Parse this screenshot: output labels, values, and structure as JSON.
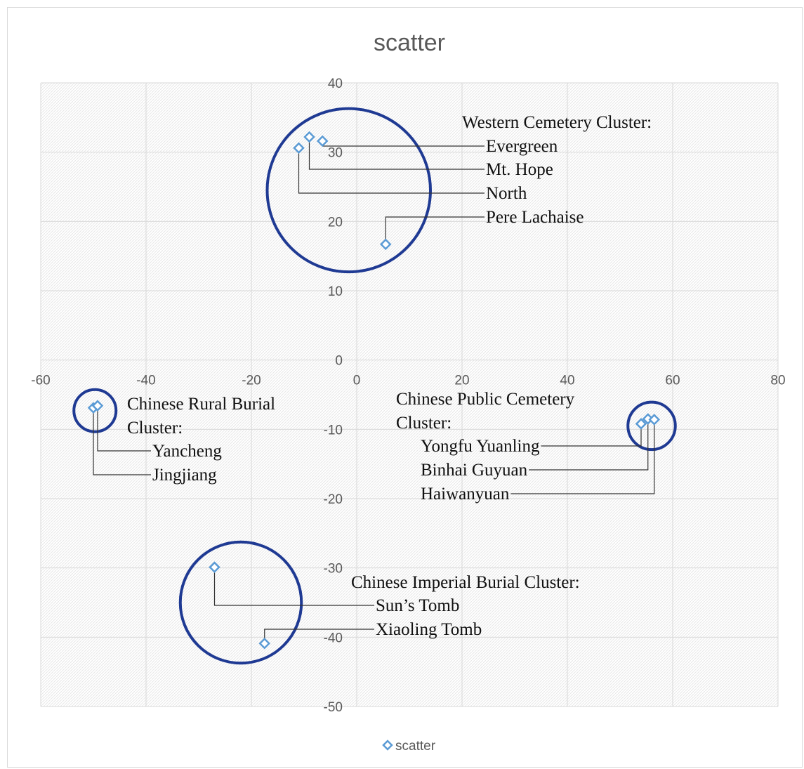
{
  "chart_data": {
    "type": "scatter",
    "title": "scatter",
    "xlabel": "",
    "ylabel": "",
    "xlim": [
      -60,
      80
    ],
    "ylim": [
      -50,
      40
    ],
    "x_ticks": [
      -60,
      -40,
      -20,
      0,
      20,
      40,
      60,
      80
    ],
    "y_ticks": [
      40,
      30,
      20,
      10,
      0,
      -10,
      -20,
      -30,
      -40,
      -50
    ],
    "grid": true,
    "background": "hatched light gray",
    "legend": {
      "position": "bottom",
      "entries": [
        "scatter"
      ]
    },
    "series": [
      {
        "name": "scatter",
        "color": "#5b9bd5",
        "marker": "diamond",
        "points": [
          {
            "x": -9,
            "y": 32.2
          },
          {
            "x": -6.5,
            "y": 31.6
          },
          {
            "x": -11,
            "y": 30.6
          },
          {
            "x": 5.5,
            "y": 16.7
          },
          {
            "x": -50,
            "y": -6.9
          },
          {
            "x": -49.2,
            "y": -6.6
          },
          {
            "x": 54,
            "y": -9.2
          },
          {
            "x": 55.3,
            "y": -8.5
          },
          {
            "x": 56.5,
            "y": -8.6
          },
          {
            "x": -27,
            "y": -29.9
          },
          {
            "x": -17.5,
            "y": -40.9
          }
        ]
      }
    ],
    "annotations": [
      {
        "lines": [
          "Western Cemetery Cluster:"
        ]
      },
      {
        "lines": [
          "Evergreen"
        ]
      },
      {
        "lines": [
          "Mt. Hope"
        ]
      },
      {
        "lines": [
          "North"
        ]
      },
      {
        "lines": [
          "Pere Lachaise"
        ]
      },
      {
        "lines": [
          "Chinese Rural Burial",
          "Cluster:"
        ]
      },
      {
        "lines": [
          "Yancheng"
        ]
      },
      {
        "lines": [
          "Jingjiang"
        ]
      },
      {
        "lines": [
          "Chinese Public Cemetery",
          "Cluster:"
        ]
      },
      {
        "lines": [
          "Yongfu Yuanling"
        ]
      },
      {
        "lines": [
          "Binhai Guyuan"
        ]
      },
      {
        "lines": [
          "Haiwanyuan"
        ]
      },
      {
        "lines": [
          "Chinese Imperial Burial Cluster:"
        ]
      },
      {
        "lines": [
          "Sun’s Tomb"
        ]
      },
      {
        "lines": [
          "Xiaoling Tomb"
        ]
      }
    ],
    "cluster_circles": [
      {
        "cx": -1.5,
        "cy": 24.5,
        "r": 15.5
      },
      {
        "cx": -49.7,
        "cy": -7.3,
        "r": 4
      },
      {
        "cx": 56,
        "cy": -9.5,
        "r": 4.5
      },
      {
        "cx": -22,
        "cy": -35,
        "r": 11.5
      }
    ],
    "cluster_circle_color": "#1f3a93"
  }
}
